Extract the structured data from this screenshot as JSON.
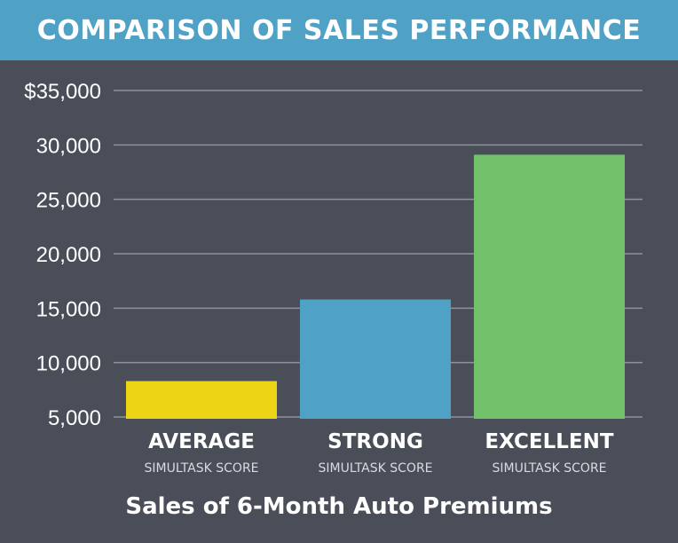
{
  "chart_data": {
    "type": "bar",
    "title": "COMPARISON OF SALES PERFORMANCE",
    "xlabel": "Sales of 6-Month Auto Premiums",
    "ylabel": "",
    "ylim": [
      5000,
      35000
    ],
    "yticks": [
      5000,
      10000,
      15000,
      20000,
      25000,
      30000,
      35000
    ],
    "ytick_labels": [
      "5,000",
      "10,000",
      "15,000",
      "20,000",
      "25,000",
      "30,000",
      "$35,000"
    ],
    "grid": true,
    "categories": [
      {
        "label": "AVERAGE",
        "sublabel": "SIMULTASK SCORE",
        "value": 8300,
        "color": "#ebd515"
      },
      {
        "label": "STRONG",
        "sublabel": "SIMULTASK SCORE",
        "value": 15800,
        "color": "#4fa2c6"
      },
      {
        "label": "EXCELLENT",
        "sublabel": "SIMULTASK SCORE",
        "value": 29100,
        "color": "#72c06a"
      }
    ]
  },
  "colors": {
    "background": "#4a4e59",
    "header": "#4fa2c6",
    "gridline": "#8e929b",
    "text": "#ffffff"
  }
}
